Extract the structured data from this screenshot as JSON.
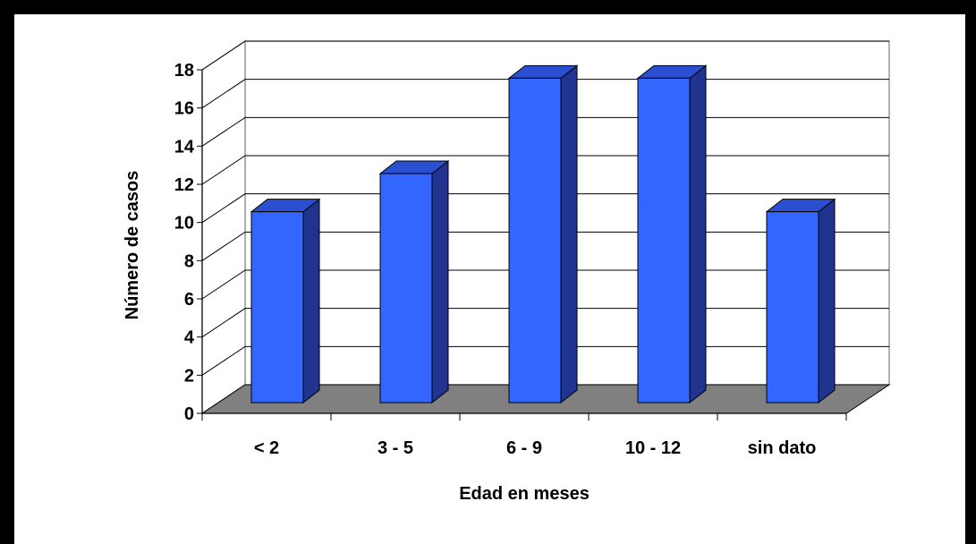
{
  "chart_data": {
    "type": "bar",
    "style": "3d-column",
    "categories": [
      "< 2",
      "3 - 5",
      "6 - 9",
      "10 - 12",
      "sin dato"
    ],
    "values": [
      10,
      12,
      17,
      17,
      10
    ],
    "xlabel": "Edad en meses",
    "ylabel": "Número de casos",
    "ylim": [
      0,
      18
    ],
    "yticks": [
      "0",
      "2",
      "4",
      "6",
      "8",
      "10",
      "12",
      "14",
      "16",
      "18"
    ],
    "grid": true,
    "legend": "none",
    "colors": {
      "bar_front": "#3366FF",
      "bar_side": "#1F338F",
      "bar_top": "#2A4FD0",
      "floor": "#808080",
      "wall": "#FFFFFF"
    }
  }
}
